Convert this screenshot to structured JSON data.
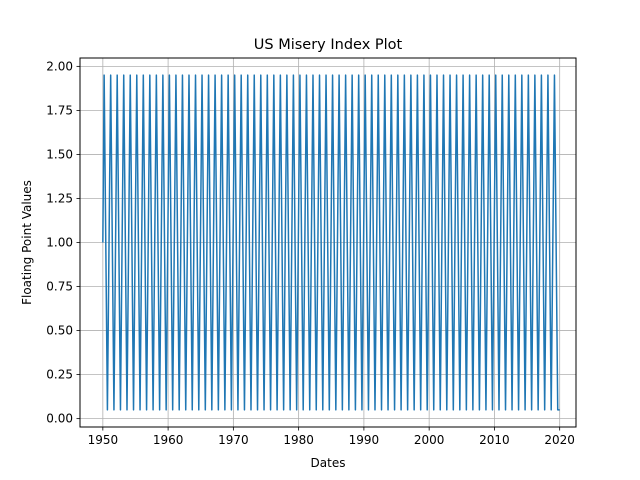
{
  "chart_data": {
    "type": "line",
    "title": "US Misery Index Plot",
    "xlabel": "Dates",
    "ylabel": "Floating Point Values",
    "xlim": [
      1946.5,
      2022.5
    ],
    "ylim": [
      -0.0475,
      2.0475
    ],
    "xticks": [
      1950,
      1960,
      1970,
      1980,
      1990,
      2000,
      2010,
      2020
    ],
    "xtick_labels": [
      "1950",
      "1960",
      "1970",
      "1980",
      "1990",
      "2000",
      "2010",
      "2020"
    ],
    "yticks": [
      0.0,
      0.25,
      0.5,
      0.75,
      1.0,
      1.25,
      1.5,
      1.75,
      2.0
    ],
    "ytick_labels": [
      "0.00",
      "0.25",
      "0.50",
      "0.75",
      "1.00",
      "1.25",
      "1.50",
      "1.75",
      "2.00"
    ],
    "grid": true,
    "legend": "none",
    "series": [
      {
        "color": "#1f77b4",
        "x_start": 1950.0,
        "x_end": 2020.0,
        "y_start": 1.0,
        "y_max": 1.95,
        "y_min": 0.05,
        "period_years": 1.0,
        "peaks_x": [
          1950.2,
          1951.2,
          1952.2,
          1953.2,
          1954.2,
          1955.2,
          1956.2,
          1957.2,
          1958.2,
          1959.2,
          1960.2,
          1961.2,
          1962.2,
          1963.2,
          1964.2,
          1965.2,
          1966.2,
          1967.2,
          1968.2,
          1969.2,
          1970.2,
          1971.2,
          1972.2,
          1973.2,
          1974.2,
          1975.2,
          1976.2,
          1977.2,
          1978.2,
          1979.2,
          1980.2,
          1981.2,
          1982.2,
          1983.2,
          1984.2,
          1985.2,
          1986.2,
          1987.2,
          1988.2,
          1989.2,
          1990.2,
          1991.2,
          1992.2,
          1993.2,
          1994.2,
          1995.2,
          1996.2,
          1997.2,
          1998.2,
          1999.2,
          2000.2,
          2001.2,
          2002.2,
          2003.2,
          2004.2,
          2005.2,
          2006.2,
          2007.2,
          2008.2,
          2009.2,
          2010.2,
          2011.2,
          2012.2,
          2013.2,
          2014.2,
          2015.2,
          2016.2,
          2017.2,
          2018.2,
          2019.2
        ],
        "troughs_x": [
          1950.7,
          1951.7,
          1952.7,
          1953.7,
          1954.7,
          1955.7,
          1956.7,
          1957.7,
          1958.7,
          1959.7,
          1960.7,
          1961.7,
          1962.7,
          1963.7,
          1964.7,
          1965.7,
          1966.7,
          1967.7,
          1968.7,
          1969.7,
          1970.7,
          1971.7,
          1972.7,
          1973.7,
          1974.7,
          1975.7,
          1976.7,
          1977.7,
          1978.7,
          1979.7,
          1980.7,
          1981.7,
          1982.7,
          1983.7,
          1984.7,
          1985.7,
          1986.7,
          1987.7,
          1988.7,
          1989.7,
          1990.7,
          1991.7,
          1992.7,
          1993.7,
          1994.7,
          1995.7,
          1996.7,
          1997.7,
          1998.7,
          1999.7,
          2000.7,
          2001.7,
          2002.7,
          2003.7,
          2004.7,
          2005.7,
          2006.7,
          2007.7,
          2008.7,
          2009.7,
          2010.7,
          2011.7,
          2012.7,
          2013.7,
          2014.7,
          2015.7,
          2016.7,
          2017.7,
          2018.7,
          2019.7
        ]
      }
    ]
  }
}
